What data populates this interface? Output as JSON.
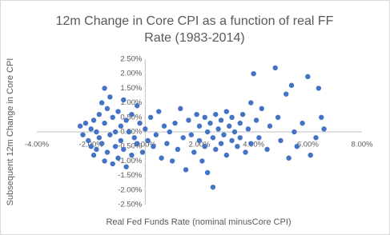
{
  "chart_data": {
    "type": "scatter",
    "title_lines": [
      "12m Change in Core CPI as a function of real FF",
      "Rate (1983-2014)"
    ],
    "x_label": "Real Fed Funds Rate (nominal minusCore CPI)",
    "y_label": "Subsequent 12m Change in Core CPI",
    "color": "#4472c4",
    "grid": false,
    "xlim": [
      -4,
      8
    ],
    "ylim": [
      -2.5,
      2.5
    ],
    "xticks": [
      {
        "value": -4,
        "label": "-4.00%"
      },
      {
        "value": -2,
        "label": "-2.00%"
      },
      {
        "value": 0,
        "label": "0.00%"
      },
      {
        "value": 2,
        "label": "2.00%"
      },
      {
        "value": 4,
        "label": "4.00%"
      },
      {
        "value": 6,
        "label": "6.00%"
      },
      {
        "value": 8,
        "label": "8.00%"
      }
    ],
    "yticks": [
      {
        "value": 2.5,
        "label": "2.50%"
      },
      {
        "value": 2,
        "label": "2.00%"
      },
      {
        "value": 1.5,
        "label": "1.50%"
      },
      {
        "value": 1,
        "label": "1.00%"
      },
      {
        "value": 0.5,
        "label": "0.50%"
      },
      {
        "value": 0,
        "label": "0.00%"
      },
      {
        "value": -0.5,
        "label": "-0.50%"
      },
      {
        "value": -1,
        "label": "-1.00%"
      },
      {
        "value": -1.5,
        "label": "-1.50%"
      },
      {
        "value": -2,
        "label": "-2.00%"
      },
      {
        "value": -2.5,
        "label": "-2.50%"
      }
    ],
    "x": [
      -2.4,
      -2.3,
      -2.2,
      -2.1,
      -2.0,
      -2.0,
      -1.9,
      -1.9,
      -1.8,
      -1.8,
      -1.7,
      -1.7,
      -1.6,
      -1.6,
      -1.5,
      -1.5,
      -1.5,
      -1.4,
      -1.4,
      -1.3,
      -1.3,
      -1.2,
      -1.2,
      -1.1,
      -1.1,
      -1.0,
      -1.0,
      -0.9,
      -0.9,
      -0.8,
      -0.8,
      -0.7,
      -0.7,
      -0.6,
      -0.5,
      -0.5,
      -0.4,
      -0.3,
      -0.3,
      -0.2,
      -0.1,
      0.0,
      0.1,
      0.2,
      0.3,
      0.4,
      0.5,
      0.6,
      0.7,
      0.8,
      0.9,
      1.0,
      1.1,
      1.2,
      1.3,
      1.4,
      1.5,
      1.6,
      1.7,
      1.8,
      1.9,
      2.0,
      2.0,
      2.1,
      2.2,
      2.2,
      2.3,
      2.3,
      2.4,
      2.5,
      2.5,
      2.6,
      2.6,
      2.7,
      2.8,
      2.8,
      2.9,
      3.0,
      3.0,
      3.1,
      3.2,
      3.2,
      3.3,
      3.4,
      3.5,
      3.5,
      3.6,
      3.7,
      3.8,
      3.9,
      3.9,
      4.0,
      4.1,
      4.2,
      4.3,
      4.5,
      4.6,
      4.8,
      4.9,
      5.0,
      5.2,
      5.3,
      5.4,
      5.5,
      5.6,
      5.8,
      6.0,
      6.1,
      6.3,
      6.4,
      6.5,
      6.6
    ],
    "values": [
      0.2,
      -0.1,
      0.3,
      -0.3,
      0.1,
      -0.5,
      0.4,
      -0.8,
      0.0,
      -0.6,
      0.6,
      -0.2,
      1.0,
      -0.4,
      1.5,
      0.3,
      -1.0,
      0.8,
      -0.7,
      1.2,
      -0.1,
      0.5,
      -1.1,
      0.0,
      -0.5,
      0.7,
      -0.9,
      0.2,
      -0.3,
      1.1,
      -0.6,
      0.4,
      -1.2,
      0.0,
      0.6,
      -0.8,
      -0.2,
      0.9,
      -0.4,
      0.3,
      -0.7,
      0.1,
      -0.3,
      0.5,
      -0.5,
      -0.1,
      0.7,
      -0.9,
      0.2,
      -0.4,
      0.0,
      -1.0,
      0.3,
      -0.6,
      0.8,
      -0.2,
      -1.3,
      0.4,
      -0.1,
      -0.7,
      0.6,
      -0.3,
      0.2,
      -1.0,
      0.5,
      -0.5,
      0.0,
      -1.4,
      0.3,
      -0.2,
      -1.9,
      0.6,
      -0.6,
      0.1,
      -0.4,
      0.4,
      -0.1,
      0.7,
      -0.8,
      0.2,
      -0.3,
      0.5,
      0.0,
      -0.5,
      0.3,
      -0.2,
      0.6,
      -0.7,
      0.1,
      1.0,
      -0.4,
      2.0,
      0.4,
      -0.2,
      0.8,
      -0.6,
      0.2,
      2.2,
      0.5,
      -0.3,
      1.3,
      -0.9,
      1.6,
      0.0,
      -0.5,
      0.3,
      1.9,
      -0.8,
      -0.2,
      1.5,
      0.5,
      0.1
    ]
  }
}
